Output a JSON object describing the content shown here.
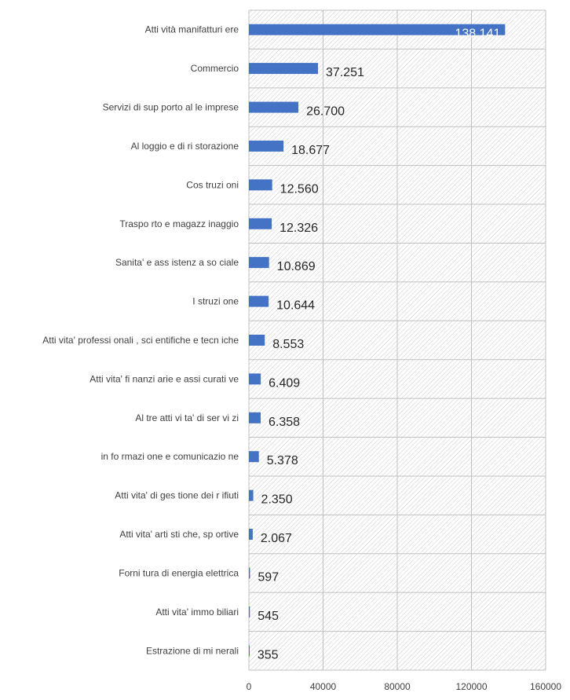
{
  "chart_data": {
    "type": "bar",
    "orientation": "horizontal",
    "categories": [
      "Atti vità manifatturi ere",
      "Commercio",
      "Servizi di sup porto al le imprese",
      "Al loggio e di ri storazione",
      "Cos truzi oni",
      "Traspo rto e magazz inaggio",
      "Sanita' e ass istenz a so ciale",
      "I struzi one",
      "Atti vita' professi onali , sci entifiche e tecn iche",
      "Atti vita' fi nanzi arie e assi curati ve",
      "Al tre atti vi ta' di ser vi zi",
      "in fo rmazi one e comunicazio ne",
      "Atti vita' di ges tione dei r ifiuti",
      "Atti vita' arti sti che, sp ortive",
      "Forni tura di energia elettrica",
      "Atti vita' immo biliari",
      "Estrazione di mi nerali"
    ],
    "values": [
      138141,
      37251,
      26700,
      18677,
      12560,
      12326,
      10869,
      10644,
      8553,
      6409,
      6358,
      5378,
      2350,
      2067,
      597,
      545,
      355
    ],
    "data_labels": [
      "138.141",
      "37.251",
      "26.700",
      "18.677",
      "12.560",
      "12.326",
      "10.869",
      "10.644",
      "8.553",
      "6.409",
      "6.358",
      "5.378",
      "2.350",
      "2.067",
      "597",
      "545",
      "355"
    ],
    "x_ticks": [
      "0",
      "40000",
      "80000",
      "120000",
      "160000"
    ],
    "xlim": [
      0,
      160000
    ],
    "title": "",
    "xlabel": "",
    "ylabel": "",
    "grid": true,
    "legend": "none",
    "bar_color": "#4472c4",
    "background_pattern": "diagonal-hatch",
    "hatch_color": "#c8c8c8",
    "gridline_color": "#c0c0c0"
  }
}
